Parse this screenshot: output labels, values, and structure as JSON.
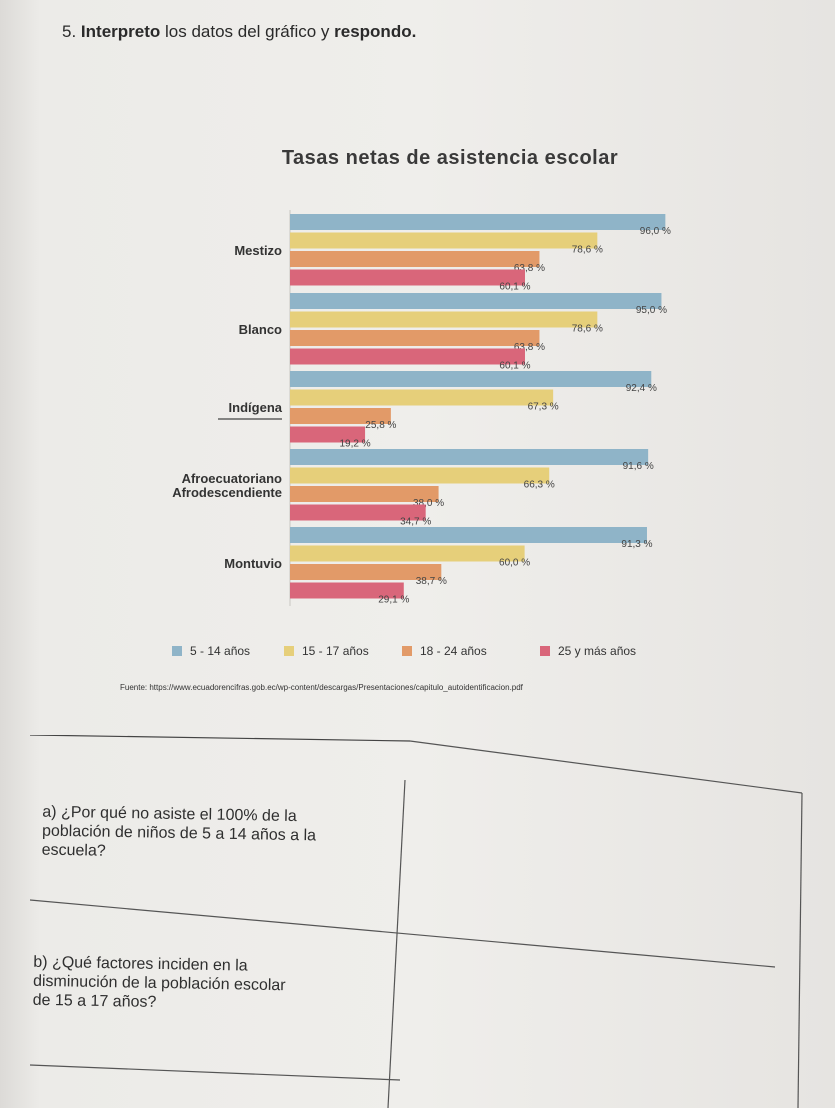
{
  "question": {
    "number": "5.",
    "bold_start": "Interpreto",
    "middle": " los datos del gráfico y ",
    "bold_end": "respondo."
  },
  "chart_data": {
    "type": "bar",
    "orientation": "horizontal",
    "title": "Tasas netas de asistencia escolar",
    "categories": [
      "Mestizo",
      "Blanco",
      "Indígena",
      "Afroecuatoriano Afrodescendiente",
      "Montuvio"
    ],
    "category_lines": [
      [
        "Mestizo"
      ],
      [
        "Blanco"
      ],
      [
        "Indígena"
      ],
      [
        "Afroecuatoriano",
        "Afrodescendiente"
      ],
      [
        "Montuvio"
      ]
    ],
    "series": [
      {
        "name": "5 - 14 años",
        "color": "#8fb4c8",
        "values": [
          96.0,
          95.0,
          92.4,
          91.6,
          91.3
        ],
        "labels": [
          "96,0 %",
          "95,0 %",
          "92,4 %",
          "91,6 %",
          "91,3 %"
        ]
      },
      {
        "name": "15 - 17 años",
        "color": "#e6cf7a",
        "values": [
          78.6,
          78.6,
          67.3,
          66.3,
          60.0
        ],
        "labels": [
          "78,6 %",
          "78,6 %",
          "67,3 %",
          "66,3 %",
          "60,0 %"
        ]
      },
      {
        "name": "18 - 24 años",
        "color": "#e29a68",
        "values": [
          63.8,
          63.8,
          25.8,
          38.0,
          38.7
        ],
        "labels": [
          "63,8 %",
          "63,8 %",
          "25,8 %",
          "38,0 %",
          "38,7 %"
        ]
      },
      {
        "name": "25 y más años",
        "color": "#d9667a",
        "values": [
          60.1,
          60.1,
          19.2,
          34.7,
          29.1
        ],
        "labels": [
          "60,1 %",
          "60,1 %",
          "19,2 %",
          "34,7 %",
          "29,1 %"
        ]
      }
    ],
    "xlim": [
      0,
      100
    ],
    "grid": false,
    "legend_position": "bottom"
  },
  "source": "Fuente: https://www.ecuadorencifras.gob.ec/wp-content/descargas/Presentaciones/capitulo_autoidentificacion.pdf",
  "questions": [
    {
      "lines": [
        "a) ¿Por qué no asiste el 100% de la",
        "población de niños de 5 a 14 años a la",
        "escuela?"
      ]
    },
    {
      "lines": [
        "b) ¿Qué factores inciden en la",
        "disminución de la población escolar",
        "de 15 a 17 años?"
      ]
    }
  ]
}
